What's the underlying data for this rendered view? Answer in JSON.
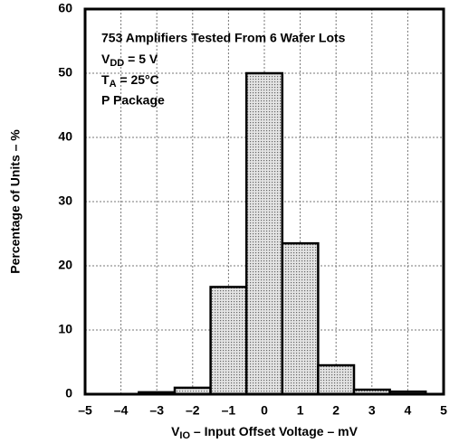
{
  "chart_data": {
    "type": "histogram",
    "annotations": [
      {
        "text": "753 Amplifiers Tested From 6 Wafer Lots"
      },
      {
        "text": "V",
        "sub": "DD",
        "rest": " = 5 V"
      },
      {
        "text": "T",
        "sub": "A",
        "rest": " = 25°C"
      },
      {
        "text": "P Package"
      }
    ],
    "x_label": {
      "text": "V",
      "sub": "IO",
      "rest": " – Input Offset Voltage – mV"
    },
    "y_label": "Percentage of Units – %",
    "bins": [
      -3.5,
      -2.5,
      -1.5,
      -0.5,
      0.5,
      1.5,
      2.5,
      3.5,
      4.5
    ],
    "counts": [
      0.3,
      1,
      16.7,
      50,
      23.5,
      4.5,
      0.7,
      0.4
    ],
    "color": "#c8c8c8",
    "xlim": [
      -5,
      5
    ],
    "xticks": [
      {
        "value": -5,
        "label": "–5"
      },
      {
        "value": -4,
        "label": "–4"
      },
      {
        "value": -3,
        "label": "–3"
      },
      {
        "value": -2,
        "label": "–2"
      },
      {
        "value": -1,
        "label": "–1"
      },
      0,
      1,
      2,
      3,
      4,
      5
    ],
    "ylim": [
      0,
      60
    ],
    "yticks": [
      0,
      10,
      20,
      30,
      40,
      50,
      60
    ],
    "grid": true
  }
}
